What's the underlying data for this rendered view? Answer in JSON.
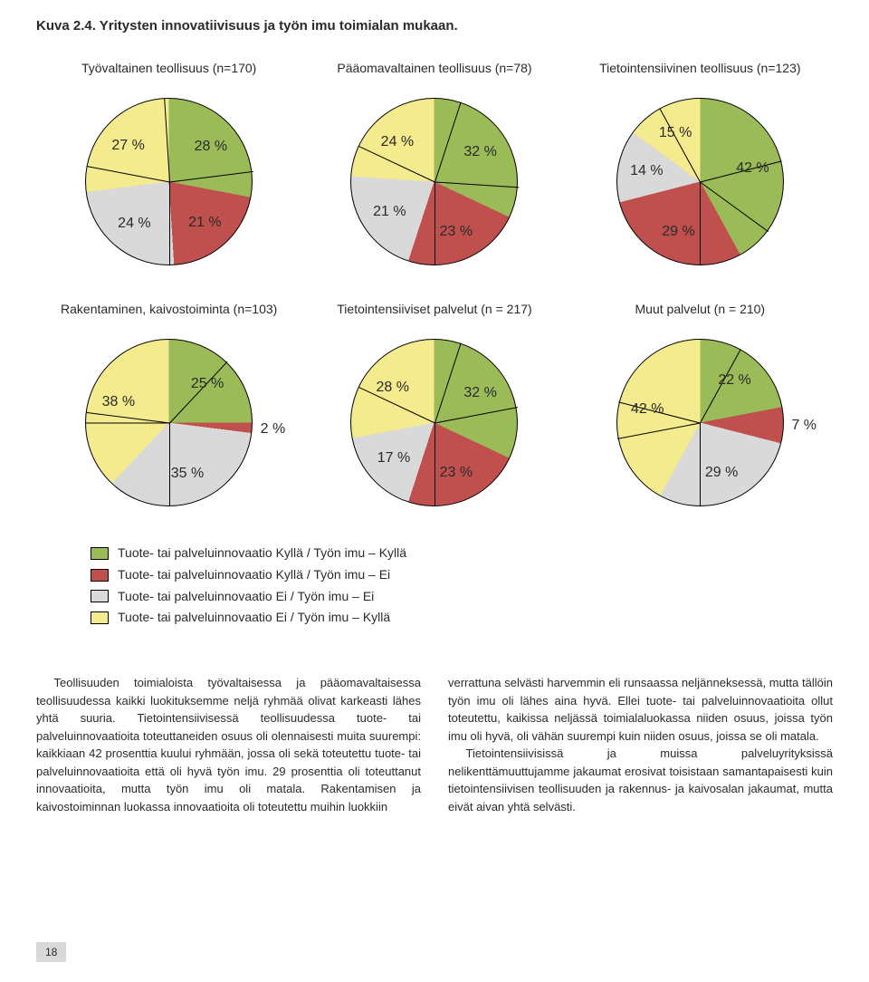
{
  "title": "Kuva 2.4. Yritysten innovatiivisuus ja työn imu toimialan mukaan.",
  "colors": {
    "green": "#9bbb59",
    "red": "#c0504d",
    "grey": "#d9d9d9",
    "yellow": "#f4ea8e",
    "line": "#000000"
  },
  "legend": [
    {
      "color": "#9bbb59",
      "label": "Tuote- tai palveluinnovaatio Kyllä / Työn imu – Kyllä"
    },
    {
      "color": "#c0504d",
      "label": "Tuote- tai palveluinnovaatio Kyllä / Työn imu – Ei"
    },
    {
      "color": "#d9d9d9",
      "label": "Tuote- tai palveluinnovaatio Ei / Työn imu – Ei"
    },
    {
      "color": "#f4ea8e",
      "label": "Tuote- tai palveluinnovaatio Ei / Työn imu – Kyllä"
    }
  ],
  "row1": [
    {
      "title": "Työvaltainen teollisuus (n=170)",
      "slices": [
        {
          "v": 28,
          "color": "#9bbb59",
          "label": "28 %"
        },
        {
          "v": 21,
          "color": "#c0504d",
          "label": "21 %"
        },
        {
          "v": 24,
          "color": "#d9d9d9",
          "label": "24 %"
        },
        {
          "v": 27,
          "color": "#f4ea8e",
          "label": "27 %"
        }
      ]
    },
    {
      "title": "Pääomavaltainen teollisuus (n=78)",
      "slices": [
        {
          "v": 32,
          "color": "#9bbb59",
          "label": "32 %"
        },
        {
          "v": 23,
          "color": "#c0504d",
          "label": "23 %"
        },
        {
          "v": 21,
          "color": "#d9d9d9",
          "label": "21 %"
        },
        {
          "v": 24,
          "color": "#f4ea8e",
          "label": "24 %"
        }
      ]
    },
    {
      "title": "Tietointensiivinen teollisuus (n=123)",
      "slices": [
        {
          "v": 42,
          "color": "#9bbb59",
          "label": "42 %"
        },
        {
          "v": 29,
          "color": "#c0504d",
          "label": "29 %"
        },
        {
          "v": 14,
          "color": "#d9d9d9",
          "label": "14 %"
        },
        {
          "v": 15,
          "color": "#f4ea8e",
          "label": "15 %"
        }
      ]
    }
  ],
  "row2": [
    {
      "title": "Rakentaminen, kaivostoiminta (n=103)",
      "slices": [
        {
          "v": 25,
          "color": "#9bbb59",
          "label": "25 %"
        },
        {
          "v": 2,
          "color": "#c0504d",
          "label": "2 %"
        },
        {
          "v": 35,
          "color": "#d9d9d9",
          "label": "35 %"
        },
        {
          "v": 38,
          "color": "#f4ea8e",
          "label": "38 %"
        }
      ]
    },
    {
      "title": "Tietointensiiviset palvelut (n = 217)",
      "slices": [
        {
          "v": 32,
          "color": "#9bbb59",
          "label": "32 %"
        },
        {
          "v": 23,
          "color": "#c0504d",
          "label": "23 %"
        },
        {
          "v": 17,
          "color": "#d9d9d9",
          "label": "17 %"
        },
        {
          "v": 28,
          "color": "#f4ea8e",
          "label": "28 %"
        }
      ]
    },
    {
      "title": "Muut palvelut (n = 210)",
      "slices": [
        {
          "v": 22,
          "color": "#9bbb59",
          "label": "22 %"
        },
        {
          "v": 7,
          "color": "#c0504d",
          "label": "7 %"
        },
        {
          "v": 29,
          "color": "#d9d9d9",
          "label": "29 %"
        },
        {
          "v": 42,
          "color": "#f4ea8e",
          "label": "42 %"
        }
      ]
    }
  ],
  "para": {
    "left": "Teollisuuden toimialoista työvaltaisessa ja pääomavaltaisessa teollisuudessa kaikki luokituksemme neljä ryhmää olivat karkeasti lähes yhtä suuria. Tietointensiivisessä teollisuudessa tuote- tai palveluinnovaatioita toteuttaneiden osuus oli olennaisesti muita suurempi: kaikkiaan 42 prosenttia kuului ryhmään, jossa oli sekä toteutettu tuote- tai palveluinnovaatioita että oli hyvä työn imu. 29 prosenttia oli toteuttanut innovaatioita, mutta työn imu oli matala. Rakentamisen ja kaivostoiminnan luokassa innovaatioita oli toteutettu muihin luokkiin",
    "right1": "verrattuna selvästi harvemmin eli runsaassa neljänneksessä, mutta tällöin työn imu oli lähes aina hyvä. Ellei tuote- tai palveluinnovaatioita ollut toteutettu, kaikissa neljässä toimialaluokassa niiden osuus, joissa työn imu oli hyvä, oli vähän suurempi kuin niiden osuus, joissa se oli matala.",
    "right2": "Tietointensiivisissä ja muissa palveluyrityksissä nelikenttämuuttujamme jakaumat erosivat toisistaan samantapaisesti kuin tietointensiivisen teollisuuden ja rakennus- ja kaivosalan jakaumat, mutta eivät aivan yhtä selvästi."
  },
  "page": "18"
}
